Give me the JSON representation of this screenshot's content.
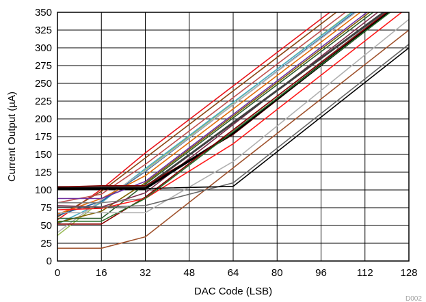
{
  "chart_data": {
    "type": "line",
    "xlabel": "DAC Code (LSB)",
    "ylabel": "Current Output (µA)",
    "figure_code": "D002",
    "xlim": [
      0,
      128
    ],
    "ylim": [
      0,
      350
    ],
    "xticks": [
      0,
      16,
      32,
      48,
      64,
      80,
      96,
      112,
      128
    ],
    "yticks": [
      0,
      25,
      50,
      75,
      100,
      125,
      150,
      175,
      200,
      225,
      250,
      275,
      300,
      325,
      350
    ],
    "grid": true,
    "legend": "none",
    "series": [
      {
        "color": "#e8141a",
        "width": 1.6,
        "x": [
          0,
          16,
          32,
          128
        ],
        "y": [
          58,
          101,
          152,
          435
        ]
      },
      {
        "color": "#8b4513",
        "width": 1.6,
        "x": [
          0,
          16,
          32,
          128
        ],
        "y": [
          62,
          98,
          145,
          428
        ]
      },
      {
        "color": "#c0504d",
        "width": 1.6,
        "x": [
          0,
          16,
          32,
          128
        ],
        "y": [
          82,
          94,
          136,
          418
        ]
      },
      {
        "color": "#9bbb59",
        "width": 1.6,
        "x": [
          0,
          16,
          32,
          128
        ],
        "y": [
          36,
          84,
          128,
          412
        ]
      },
      {
        "color": "#4bacc6",
        "width": 1.6,
        "x": [
          0,
          16,
          32,
          128
        ],
        "y": [
          52,
          82,
          130,
          410
        ]
      },
      {
        "color": "#1f5fa0",
        "width": 1.6,
        "x": [
          0,
          16,
          32,
          128
        ],
        "y": [
          64,
          84,
          126,
          408
        ]
      },
      {
        "color": "#b4b4b4",
        "width": 1.6,
        "x": [
          0,
          16,
          32,
          128
        ],
        "y": [
          40,
          86,
          127,
          406
        ]
      },
      {
        "color": "#e26b0a",
        "width": 1.6,
        "x": [
          0,
          16,
          32,
          128
        ],
        "y": [
          66,
          88,
          120,
          402
        ]
      },
      {
        "color": "#7030a0",
        "width": 1.6,
        "x": [
          0,
          16,
          32,
          128
        ],
        "y": [
          88,
          88,
          112,
          395
        ]
      },
      {
        "color": "#7f6000",
        "width": 1.6,
        "x": [
          0,
          16,
          32,
          128
        ],
        "y": [
          54,
          70,
          110,
          392
        ]
      },
      {
        "color": "#2f5f2f",
        "width": 1.6,
        "x": [
          0,
          16,
          32,
          128
        ],
        "y": [
          60,
          60,
          108,
          388
        ]
      },
      {
        "color": "#7b2c4a",
        "width": 1.6,
        "x": [
          0,
          16,
          32,
          128
        ],
        "y": [
          78,
          76,
          96,
          384
        ]
      },
      {
        "color": "#7f7f7f",
        "width": 1.6,
        "x": [
          0,
          16,
          32,
          128
        ],
        "y": [
          82,
          82,
          88,
          376
        ]
      },
      {
        "color": "#404040",
        "width": 3.0,
        "x": [
          0,
          16,
          32,
          128
        ],
        "y": [
          104,
          104,
          104,
          376
        ]
      },
      {
        "color": "#800000",
        "width": 1.6,
        "x": [
          0,
          16,
          32,
          64,
          128
        ],
        "y": [
          104,
          106,
          106,
          178,
          372
        ]
      },
      {
        "color": "#000000",
        "width": 3.4,
        "x": [
          0,
          16,
          32,
          64,
          128
        ],
        "y": [
          102,
          102,
          102,
          180,
          372
        ]
      },
      {
        "color": "#8b0000",
        "width": 1.6,
        "x": [
          0,
          16,
          32,
          128
        ],
        "y": [
          52,
          52,
          90,
          374
        ]
      },
      {
        "color": "#ff1a1a",
        "width": 1.6,
        "x": [
          0,
          16,
          32,
          64,
          128
        ],
        "y": [
          72,
          74,
          88,
          165,
          358
        ]
      },
      {
        "color": "#2a6f2a",
        "width": 1.6,
        "x": [
          0,
          16,
          32,
          64,
          128
        ],
        "y": [
          56,
          56,
          88,
          182,
          370
        ]
      },
      {
        "color": "#b0b0b0",
        "width": 1.6,
        "x": [
          0,
          16,
          32,
          64,
          128
        ],
        "y": [
          68,
          68,
          68,
          140,
          340
        ]
      },
      {
        "color": "#a0522d",
        "width": 1.6,
        "x": [
          0,
          16,
          32,
          128
        ],
        "y": [
          18,
          18,
          34,
          325
        ]
      },
      {
        "color": "#666666",
        "width": 1.6,
        "x": [
          0,
          16,
          32,
          64,
          128
        ],
        "y": [
          76,
          76,
          78,
          110,
          305
        ]
      },
      {
        "color": "#000000",
        "width": 1.6,
        "x": [
          0,
          16,
          32,
          64,
          128
        ],
        "y": [
          102,
          102,
          102,
          105,
          300
        ]
      }
    ]
  }
}
